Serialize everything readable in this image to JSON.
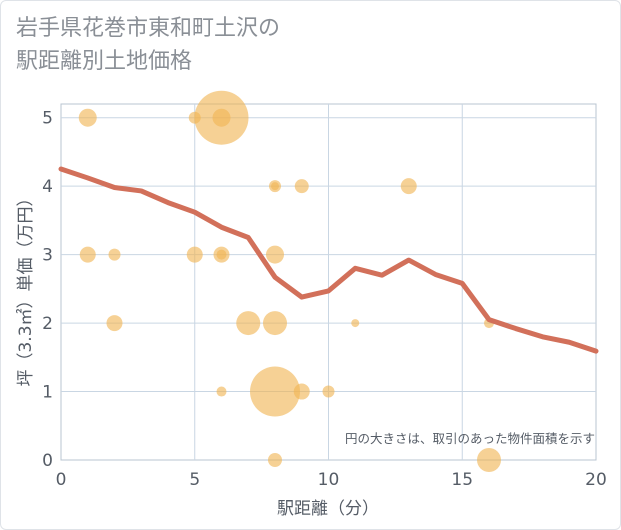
{
  "title_line1": "岩手県花巻市東和町土沢の",
  "title_line2": "駅距離別土地価格",
  "note": "円の大きさは、取引のあった物件面積を示す",
  "colors": {
    "bubble": "#f0b454",
    "line": "#d2705a",
    "grid": "#c9d6e3",
    "plot_border": "#b8c4d0"
  },
  "chart_data": {
    "type": "scatter",
    "xlabel": "駅距離（分）",
    "ylabel": "坪（3.3㎡）単価（万円）",
    "xlim": [
      0,
      20
    ],
    "ylim": [
      0,
      5.2
    ],
    "xticks": [
      0,
      5,
      10,
      15,
      20
    ],
    "yticks": [
      0,
      1,
      2,
      3,
      4,
      5
    ],
    "grid": true,
    "bubbles": [
      {
        "x": 1,
        "y": 5.0,
        "size": 9
      },
      {
        "x": 5,
        "y": 5.0,
        "size": 6
      },
      {
        "x": 6,
        "y": 5.0,
        "size": 27
      },
      {
        "x": 6,
        "y": 5.0,
        "size": 9
      },
      {
        "x": 8,
        "y": 4.0,
        "size": 6
      },
      {
        "x": 8,
        "y": 4.0,
        "size": 4
      },
      {
        "x": 9,
        "y": 4.0,
        "size": 7
      },
      {
        "x": 13,
        "y": 4.0,
        "size": 8
      },
      {
        "x": 1,
        "y": 3.0,
        "size": 8
      },
      {
        "x": 2,
        "y": 3.0,
        "size": 6
      },
      {
        "x": 5,
        "y": 3.0,
        "size": 8
      },
      {
        "x": 6,
        "y": 3.0,
        "size": 8
      },
      {
        "x": 6,
        "y": 3.0,
        "size": 5
      },
      {
        "x": 8,
        "y": 3.0,
        "size": 9
      },
      {
        "x": 2,
        "y": 2.0,
        "size": 8
      },
      {
        "x": 7,
        "y": 2.0,
        "size": 12
      },
      {
        "x": 8,
        "y": 2.0,
        "size": 12
      },
      {
        "x": 11,
        "y": 2.0,
        "size": 4
      },
      {
        "x": 16,
        "y": 2.0,
        "size": 5
      },
      {
        "x": 6,
        "y": 1.0,
        "size": 5
      },
      {
        "x": 8,
        "y": 1.0,
        "size": 25
      },
      {
        "x": 9,
        "y": 1.0,
        "size": 8
      },
      {
        "x": 10,
        "y": 1.0,
        "size": 6
      },
      {
        "x": 8,
        "y": 0.0,
        "size": 7
      },
      {
        "x": 16,
        "y": 0.0,
        "size": 12
      }
    ],
    "series": [
      {
        "type": "line",
        "x": [
          0,
          1,
          2,
          3,
          4,
          5,
          6,
          7,
          8,
          9,
          10,
          11,
          12,
          13,
          14,
          15,
          16,
          17,
          18,
          19,
          20
        ],
        "values": [
          4.25,
          4.12,
          3.98,
          3.93,
          3.76,
          3.62,
          3.4,
          3.25,
          2.67,
          2.38,
          2.47,
          2.8,
          2.7,
          2.92,
          2.71,
          2.58,
          2.05,
          1.92,
          1.8,
          1.72,
          1.59
        ]
      }
    ]
  }
}
